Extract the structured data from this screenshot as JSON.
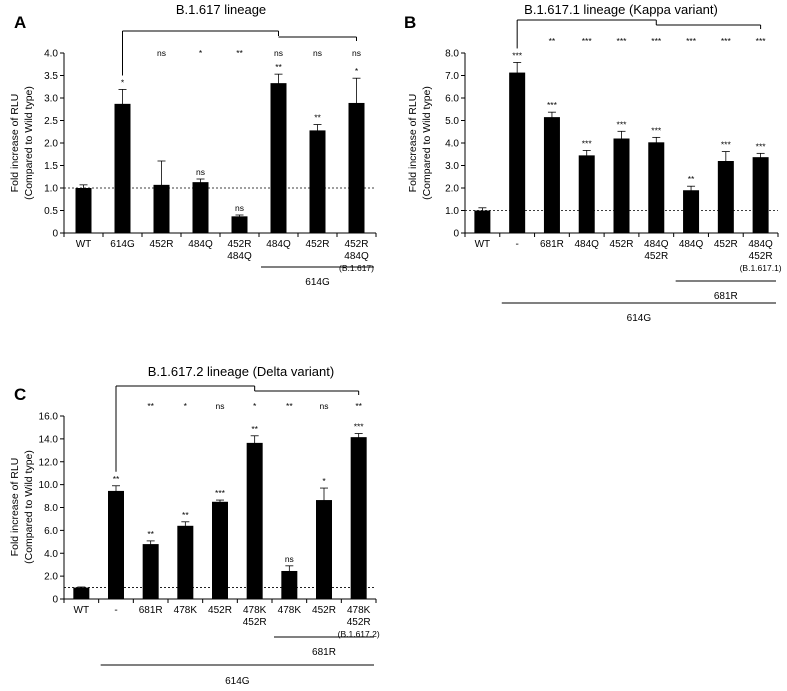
{
  "chart_data": [
    {
      "panel": "A",
      "type": "bar",
      "title": "B.1.617 lineage",
      "ylabel_lines": [
        "Fold increase of RLU",
        "(Compared to Wild type)"
      ],
      "ylim": [
        0,
        4.0
      ],
      "ticks": [
        "0",
        "0.5",
        "1.0",
        "1.5",
        "2.0",
        "2.5",
        "3.0",
        "3.5",
        "4.0"
      ],
      "categories": [
        [
          "WT"
        ],
        [
          "614G"
        ],
        [
          "452R"
        ],
        [
          "484Q"
        ],
        [
          "452R",
          "484Q"
        ],
        [
          "484Q"
        ],
        [
          "452R"
        ],
        [
          "452R",
          "484Q",
          "(B.1.617)"
        ]
      ],
      "values": [
        1.0,
        2.87,
        1.07,
        1.13,
        0.37,
        3.33,
        2.28,
        2.89
      ],
      "errors": [
        0.07,
        0.32,
        0.53,
        0.07,
        0.03,
        0.2,
        0.13,
        0.55
      ],
      "sig": [
        "",
        "*",
        "",
        "ns",
        "ns",
        "**",
        "**",
        "*"
      ],
      "comparison_sig": [
        "ns",
        "*",
        "**",
        "ns",
        "ns",
        "ns"
      ],
      "groups": [
        {
          "label": "614G"
        }
      ],
      "reference_line": 1.0
    },
    {
      "panel": "B",
      "type": "bar",
      "title": "B.1.617.1 lineage (Kappa variant)",
      "ylabel_lines": [
        "Fold increase of RLU",
        "(Compared to Wild type)"
      ],
      "ylim": [
        0,
        8.0
      ],
      "ticks": [
        "0",
        "1.0",
        "2.0",
        "3.0",
        "4.0",
        "5.0",
        "6.0",
        "7.0",
        "8.0"
      ],
      "categories": [
        [
          "WT"
        ],
        [
          "-"
        ],
        [
          "681R"
        ],
        [
          "484Q"
        ],
        [
          "452R"
        ],
        [
          "484Q",
          "452R"
        ],
        [
          "484Q"
        ],
        [
          "452R"
        ],
        [
          "484Q",
          "452R",
          "(B.1.617.1)"
        ]
      ],
      "values": [
        1.0,
        7.13,
        5.15,
        3.45,
        4.2,
        4.03,
        1.9,
        3.2,
        3.37
      ],
      "errors": [
        0.12,
        0.45,
        0.22,
        0.22,
        0.32,
        0.22,
        0.18,
        0.42,
        0.17
      ],
      "sig": [
        "",
        "***",
        "***",
        "***",
        "***",
        "***",
        "**",
        "***",
        "***"
      ],
      "comparison_sig": [
        "**",
        "***",
        "***",
        "***",
        "***",
        "***",
        "***"
      ],
      "groups": [
        {
          "label": "681R"
        },
        {
          "label": "614G"
        }
      ],
      "reference_line": 1.0
    },
    {
      "panel": "C",
      "type": "bar",
      "title": "B.1.617.2 lineage (Delta variant)",
      "ylabel_lines": [
        "Fold increase of RLU",
        "(Compared to Wild type)"
      ],
      "ylim": [
        0,
        16.0
      ],
      "ticks": [
        "0",
        "2.0",
        "4.0",
        "6.0",
        "8.0",
        "10.0",
        "12.0",
        "14.0",
        "16.0"
      ],
      "categories": [
        [
          "WT"
        ],
        [
          "-"
        ],
        [
          "681R"
        ],
        [
          "478K"
        ],
        [
          "452R"
        ],
        [
          "478K",
          "452R"
        ],
        [
          "478K"
        ],
        [
          "452R"
        ],
        [
          "478K",
          "452R",
          "(B.1.617.2)"
        ]
      ],
      "values": [
        1.0,
        9.45,
        4.8,
        6.4,
        8.5,
        13.65,
        2.45,
        8.65,
        14.15
      ],
      "errors": [
        0.05,
        0.45,
        0.28,
        0.35,
        0.15,
        0.62,
        0.45,
        1.05,
        0.32
      ],
      "sig": [
        "",
        "**",
        "**",
        "**",
        "***",
        "**",
        "ns",
        "*",
        "***"
      ],
      "comparison_sig": [
        "**",
        "*",
        "ns",
        "*",
        "**",
        "ns",
        "**"
      ],
      "groups": [
        {
          "label": "681R"
        },
        {
          "label": "614G"
        }
      ],
      "reference_line": 1.0
    }
  ]
}
